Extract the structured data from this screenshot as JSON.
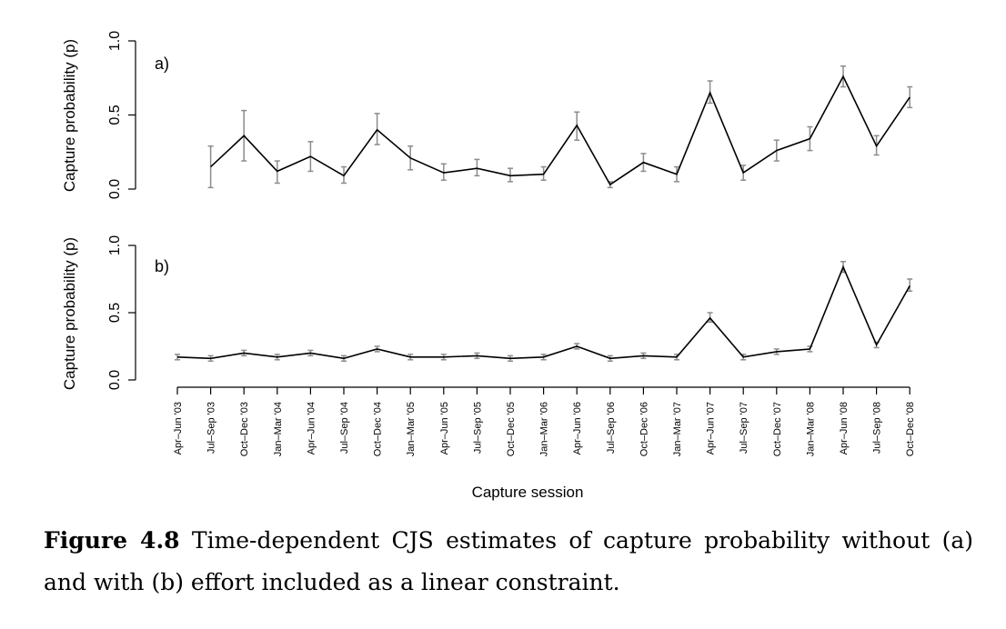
{
  "chart_data": [
    {
      "type": "line",
      "panel_label": "a)",
      "ylabel": "Capture probability (p)",
      "ylim": [
        0,
        1
      ],
      "yticks": [
        "0.0",
        "0.5",
        "1.0"
      ],
      "x": [
        "Jul–Sep '03",
        "Oct–Dec '03",
        "Jan–Mar '04",
        "Apr–Jun '04",
        "Jul–Sep '04",
        "Oct–Dec '04",
        "Jan–Mar '05",
        "Apr–Jun '05",
        "Jul–Sep '05",
        "Oct–Dec '05",
        "Jan–Mar '06",
        "Apr–Jun '06",
        "Jul–Sep '06",
        "Oct–Dec '06",
        "Jan–Mar '07",
        "Apr–Jun '07",
        "Jul–Sep '07",
        "Oct–Dec '07",
        "Jan–Mar '08",
        "Apr–Jun '08",
        "Jul–Sep '08",
        "Oct–Dec '08"
      ],
      "values": [
        0.15,
        0.36,
        0.12,
        0.22,
        0.09,
        0.4,
        0.21,
        0.11,
        0.14,
        0.09,
        0.1,
        0.43,
        0.03,
        0.18,
        0.1,
        0.65,
        0.11,
        0.26,
        0.34,
        0.76,
        0.29,
        0.62
      ],
      "lower": [
        0.01,
        0.19,
        0.04,
        0.12,
        0.04,
        0.3,
        0.13,
        0.06,
        0.09,
        0.05,
        0.06,
        0.33,
        0.01,
        0.12,
        0.05,
        0.58,
        0.06,
        0.19,
        0.26,
        0.69,
        0.23,
        0.55
      ],
      "upper": [
        0.29,
        0.53,
        0.19,
        0.32,
        0.15,
        0.51,
        0.29,
        0.17,
        0.2,
        0.14,
        0.15,
        0.52,
        0.05,
        0.24,
        0.15,
        0.73,
        0.16,
        0.33,
        0.42,
        0.83,
        0.36,
        0.69
      ],
      "line_color": "#000000",
      "errorbar_color": "#8c8c8c",
      "grid": false
    },
    {
      "type": "line",
      "panel_label": "b)",
      "ylabel": "Capture probability (p)",
      "xlabel": "Capture session",
      "ylim": [
        0,
        1
      ],
      "yticks": [
        "0.0",
        "0.5",
        "1.0"
      ],
      "x": [
        "Apr–Jun '03",
        "Jul–Sep '03",
        "Oct–Dec '03",
        "Jan–Mar '04",
        "Apr–Jun '04",
        "Jul–Sep '04",
        "Oct–Dec '04",
        "Jan–Mar '05",
        "Apr–Jun '05",
        "Jul–Sep '05",
        "Oct–Dec '05",
        "Jan–Mar '06",
        "Apr–Jun '06",
        "Jul–Sep '06",
        "Oct–Dec '06",
        "Jan–Mar '07",
        "Apr–Jun '07",
        "Jul–Sep '07",
        "Oct–Dec '07",
        "Jan–Mar '08",
        "Apr–Jun '08",
        "Jul–Sep '08",
        "Oct–Dec '08"
      ],
      "values": [
        0.17,
        0.16,
        0.2,
        0.17,
        0.2,
        0.16,
        0.23,
        0.17,
        0.17,
        0.18,
        0.16,
        0.17,
        0.25,
        0.16,
        0.18,
        0.17,
        0.46,
        0.17,
        0.21,
        0.23,
        0.84,
        0.26,
        0.7
      ],
      "lower": [
        0.15,
        0.14,
        0.18,
        0.15,
        0.18,
        0.14,
        0.21,
        0.15,
        0.15,
        0.16,
        0.14,
        0.15,
        0.23,
        0.14,
        0.16,
        0.15,
        0.43,
        0.15,
        0.19,
        0.21,
        0.8,
        0.24,
        0.66
      ],
      "upper": [
        0.19,
        0.18,
        0.22,
        0.19,
        0.22,
        0.18,
        0.25,
        0.19,
        0.19,
        0.2,
        0.18,
        0.19,
        0.27,
        0.18,
        0.2,
        0.19,
        0.5,
        0.19,
        0.23,
        0.25,
        0.88,
        0.28,
        0.75
      ],
      "line_color": "#000000",
      "errorbar_color": "#8c8c8c",
      "grid": false
    }
  ],
  "caption": {
    "lead": "Figure 4.8",
    "text": " Time-dependent CJS estimates of capture probability without (a) and with (b) effort included as a linear constraint."
  }
}
